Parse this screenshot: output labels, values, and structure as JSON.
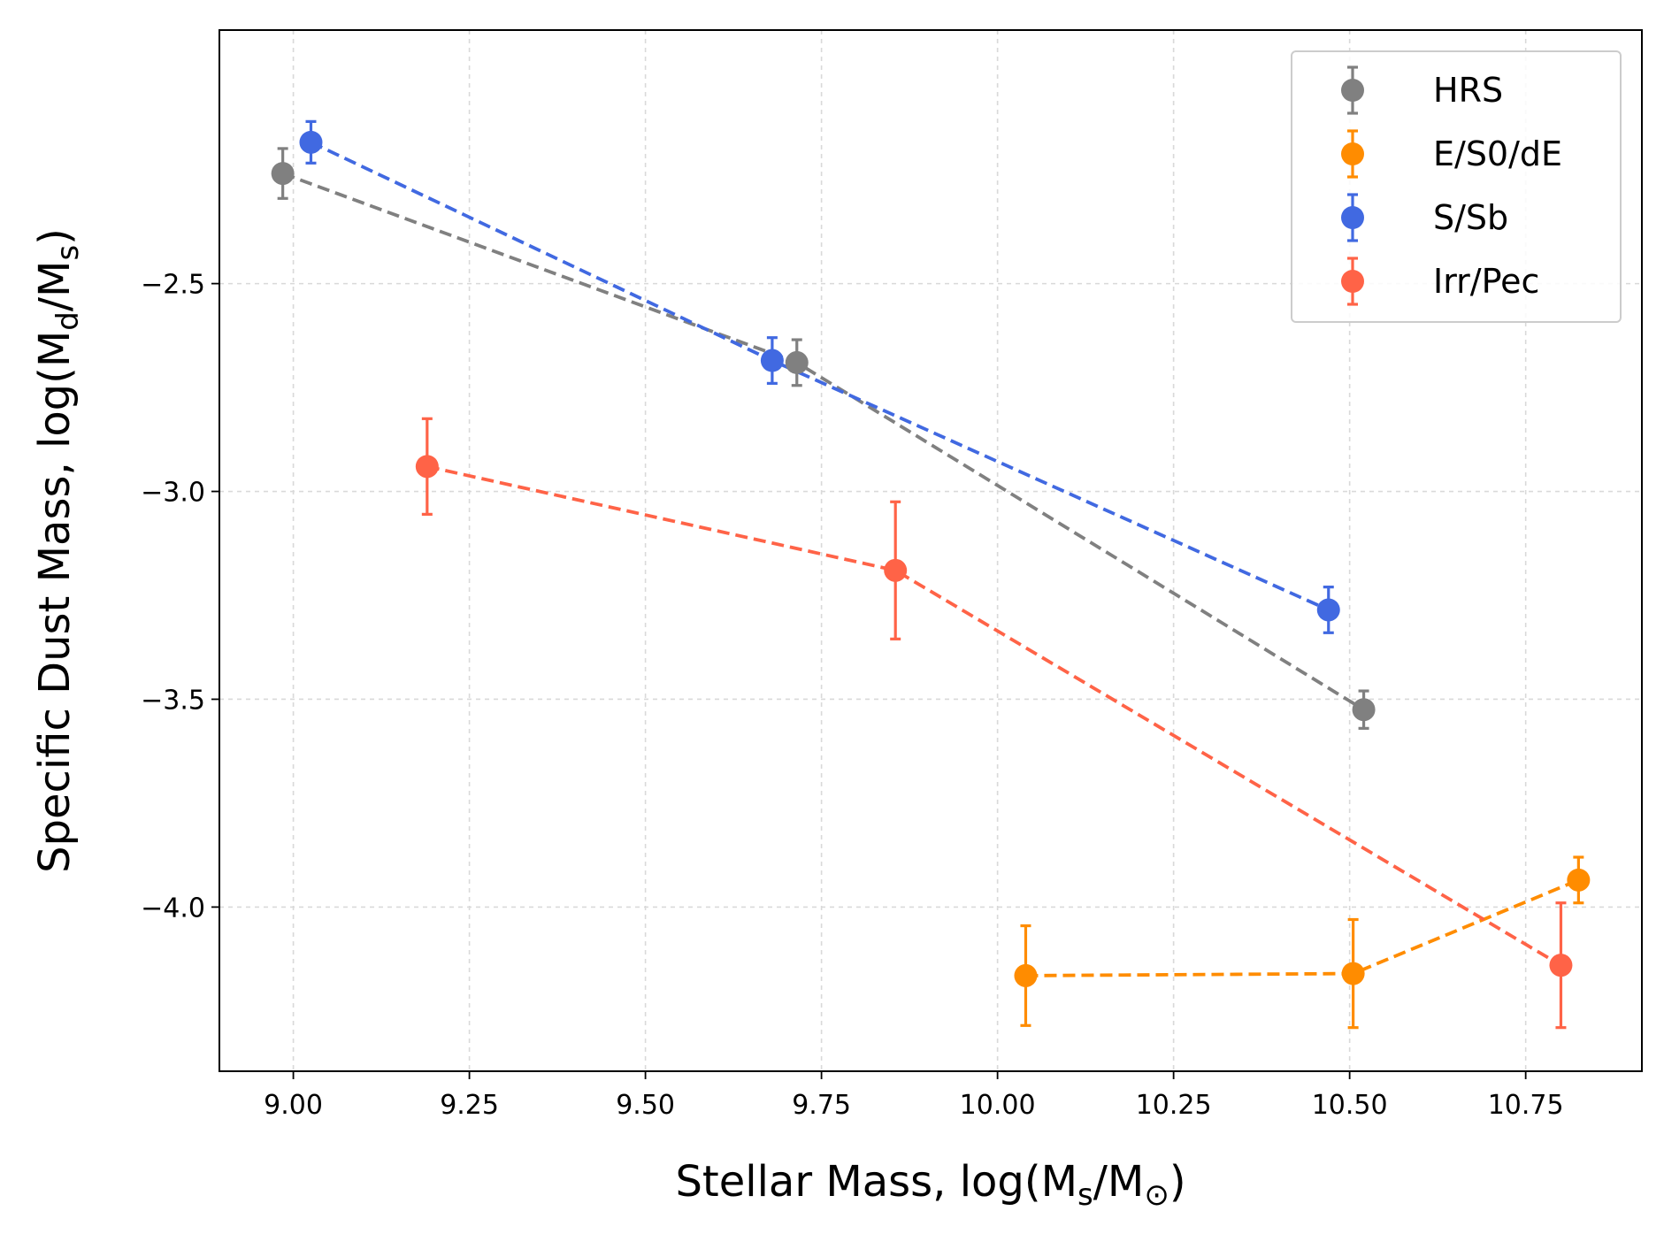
{
  "chart_data": {
    "type": "scatter",
    "title": "",
    "xlabel": {
      "prefix": "Stellar Mass, log(M",
      "sub1": "s",
      "mid": "/M",
      "sub2": "⊙",
      "suffix": ")"
    },
    "ylabel": {
      "prefix": "Specific Dust Mass, log(M",
      "sub1": "d",
      "mid": "/M",
      "sub2": "s",
      "suffix": ")"
    },
    "xlim": [
      8.895,
      10.915
    ],
    "ylim": [
      -4.395,
      -1.89
    ],
    "xticks": [
      9.0,
      9.25,
      9.5,
      9.75,
      10.0,
      10.25,
      10.5,
      10.75
    ],
    "xtick_labels": [
      "9.00",
      "9.25",
      "9.50",
      "9.75",
      "10.00",
      "10.25",
      "10.50",
      "10.75"
    ],
    "yticks": [
      -2.5,
      -3.0,
      -3.5,
      -4.0
    ],
    "ytick_labels": [
      "−2.5",
      "−3.0",
      "−3.5",
      "−4.0"
    ],
    "grid": true,
    "legend_position": "top-right",
    "series": [
      {
        "name": "HRS",
        "color": "#808080",
        "x": [
          8.985,
          9.715,
          10.52
        ],
        "y": [
          -2.235,
          -2.69,
          -3.525
        ],
        "yerr": [
          0.06,
          0.055,
          0.045
        ]
      },
      {
        "name": "E/S0/dE",
        "color": "#ff8c00",
        "x": [
          10.04,
          10.505,
          10.825
        ],
        "y": [
          -4.165,
          -4.16,
          -3.935
        ],
        "yerr": [
          0.12,
          0.13,
          0.055
        ]
      },
      {
        "name": "S/Sb",
        "color": "#4169e1",
        "x": [
          9.025,
          9.68,
          10.47
        ],
        "y": [
          -2.16,
          -2.685,
          -3.285
        ],
        "yerr": [
          0.05,
          0.055,
          0.055
        ]
      },
      {
        "name": "Irr/Pec",
        "color": "#ff6347",
        "x": [
          9.19,
          9.855,
          10.8
        ],
        "y": [
          -2.94,
          -3.19,
          -4.14
        ],
        "yerr": [
          0.115,
          0.165,
          0.15
        ]
      }
    ]
  }
}
